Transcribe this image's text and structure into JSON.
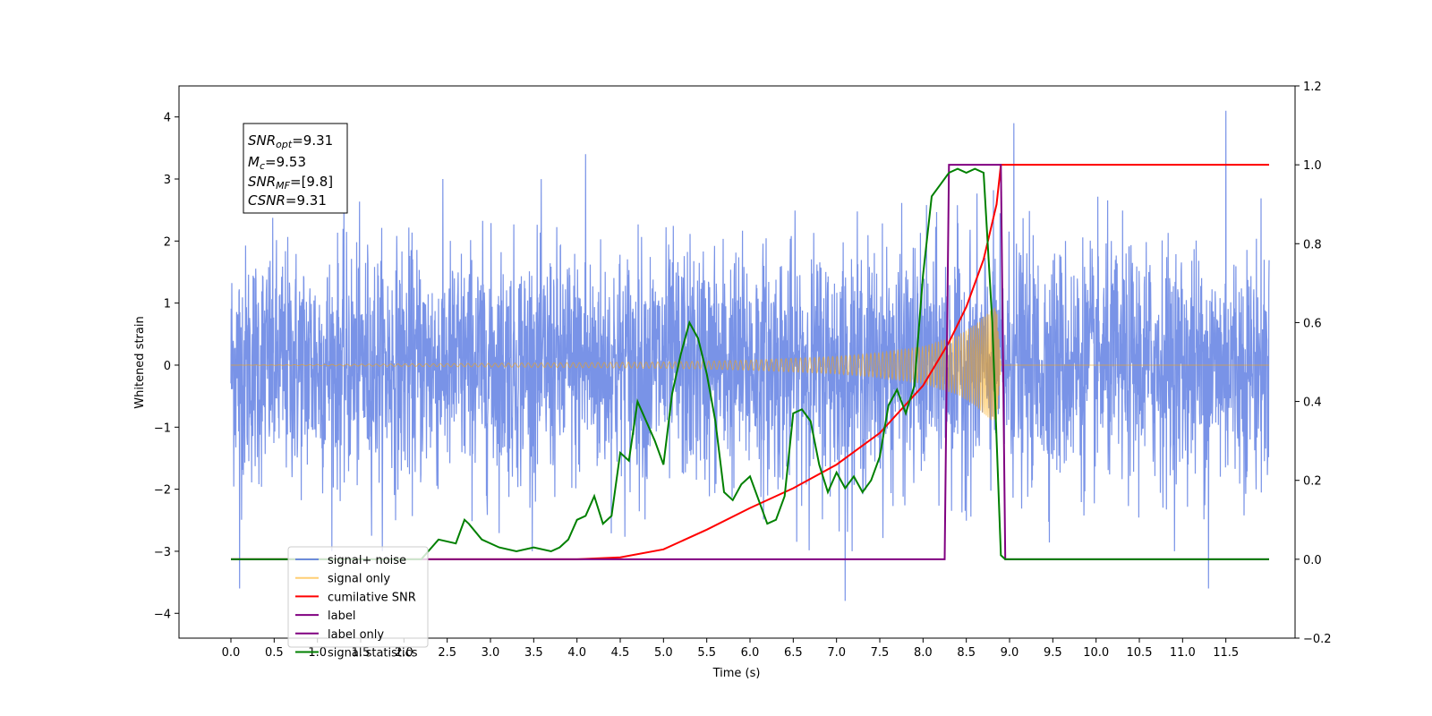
{
  "chart_data": {
    "type": "line",
    "xlabel": "Time (s)",
    "ylabel": "Whitened strain",
    "xlim": [
      -0.6,
      12.3
    ],
    "ylim": [
      -4.4,
      4.5
    ],
    "y2lim": [
      -0.2,
      1.2
    ],
    "x_ticks": [
      "0.0",
      "0.5",
      "1.0",
      "1.5",
      "2.0",
      "2.5",
      "3.0",
      "3.5",
      "4.0",
      "4.5",
      "5.0",
      "5.5",
      "6.0",
      "6.5",
      "7.0",
      "7.5",
      "8.0",
      "8.5",
      "9.0",
      "9.5",
      "10.0",
      "10.5",
      "11.0",
      "11.5"
    ],
    "y_ticks": [
      "4",
      "3",
      "2",
      "1",
      "0",
      "−1",
      "−2",
      "−3",
      "−4"
    ],
    "y2_ticks": [
      "1.2",
      "1.0",
      "0.8",
      "0.6",
      "0.4",
      "0.2",
      "0.0",
      "−0.2"
    ],
    "grid": false,
    "legend_position": "lower-left",
    "annotation": {
      "lines": [
        {
          "name": "SNR",
          "sub": "opt",
          "value": "=9.31"
        },
        {
          "name": "M",
          "sub": "c",
          "value": "=9.53"
        },
        {
          "name": "SNR",
          "sub": "MF",
          "value": "=[9.8]"
        },
        {
          "name": "CSNR",
          "sub": "",
          "value": "=9.31"
        }
      ]
    },
    "series": [
      {
        "name": "signal+ noise",
        "axis": "left",
        "color": "#4c6fdf",
        "style": "noise",
        "t_start": 0.0,
        "t_end": 12.0,
        "amplitude_std": 1.0,
        "notable_peaks": [
          {
            "t": 0.1,
            "y": -3.6
          },
          {
            "t": 4.1,
            "y": 3.4
          },
          {
            "t": 7.1,
            "y": -3.8
          },
          {
            "t": 9.05,
            "y": 3.9
          },
          {
            "t": 11.3,
            "y": -3.6
          },
          {
            "t": 11.5,
            "y": 4.1
          }
        ]
      },
      {
        "name": "signal only",
        "axis": "left",
        "color": "#ffa500",
        "style": "chirp",
        "t_start": 0.0,
        "t_end": 8.9,
        "envelope": [
          [
            0.0,
            0.0
          ],
          [
            5.0,
            0.05
          ],
          [
            6.0,
            0.08
          ],
          [
            7.0,
            0.14
          ],
          [
            7.5,
            0.2
          ],
          [
            8.0,
            0.3
          ],
          [
            8.4,
            0.48
          ],
          [
            8.6,
            0.65
          ],
          [
            8.75,
            0.85
          ],
          [
            8.85,
            0.95
          ],
          [
            8.9,
            0.0
          ]
        ]
      },
      {
        "name": "cumilative SNR",
        "axis": "right",
        "color": "#ff0000",
        "x": [
          0.0,
          4.0,
          4.5,
          5.0,
          5.5,
          6.0,
          6.5,
          7.0,
          7.5,
          8.0,
          8.3,
          8.5,
          8.7,
          8.85,
          8.9,
          12.0
        ],
        "y": [
          0.0,
          0.0,
          0.005,
          0.025,
          0.075,
          0.13,
          0.18,
          0.24,
          0.32,
          0.44,
          0.55,
          0.64,
          0.76,
          0.9,
          1.0,
          1.0
        ]
      },
      {
        "name": "label",
        "axis": "right",
        "color": "#800080",
        "x": [
          0.0,
          8.25,
          8.3,
          8.9,
          8.95,
          12.0
        ],
        "y": [
          0.0,
          0.0,
          1.0,
          1.0,
          0.0,
          0.0
        ]
      },
      {
        "name": "label only",
        "axis": "right",
        "color": "#800080",
        "x": [],
        "y": []
      },
      {
        "name": "signal statistics",
        "axis": "right",
        "color": "#008000",
        "x": [
          0.0,
          2.2,
          2.4,
          2.6,
          2.7,
          2.75,
          2.9,
          3.1,
          3.3,
          3.5,
          3.7,
          3.8,
          3.9,
          4.0,
          4.1,
          4.2,
          4.3,
          4.4,
          4.5,
          4.6,
          4.7,
          4.9,
          5.0,
          5.1,
          5.2,
          5.3,
          5.4,
          5.5,
          5.6,
          5.7,
          5.8,
          5.9,
          6.0,
          6.1,
          6.2,
          6.3,
          6.4,
          6.5,
          6.6,
          6.7,
          6.8,
          6.9,
          7.0,
          7.1,
          7.2,
          7.3,
          7.4,
          7.5,
          7.6,
          7.7,
          7.8,
          7.9,
          8.0,
          8.1,
          8.2,
          8.3,
          8.4,
          8.5,
          8.6,
          8.7,
          8.8,
          8.9,
          8.95,
          9.0,
          9.1,
          12.0
        ],
        "y": [
          0.0,
          0.0,
          0.05,
          0.04,
          0.1,
          0.09,
          0.05,
          0.03,
          0.02,
          0.03,
          0.02,
          0.03,
          0.05,
          0.1,
          0.11,
          0.16,
          0.09,
          0.11,
          0.27,
          0.25,
          0.4,
          0.3,
          0.24,
          0.42,
          0.52,
          0.6,
          0.56,
          0.47,
          0.35,
          0.17,
          0.15,
          0.19,
          0.21,
          0.15,
          0.09,
          0.1,
          0.16,
          0.37,
          0.38,
          0.35,
          0.24,
          0.17,
          0.22,
          0.18,
          0.21,
          0.17,
          0.2,
          0.26,
          0.39,
          0.43,
          0.37,
          0.44,
          0.72,
          0.92,
          0.95,
          0.98,
          0.99,
          0.98,
          0.99,
          0.98,
          0.6,
          0.01,
          0.0,
          0.0,
          0.0,
          0.0
        ]
      }
    ]
  }
}
